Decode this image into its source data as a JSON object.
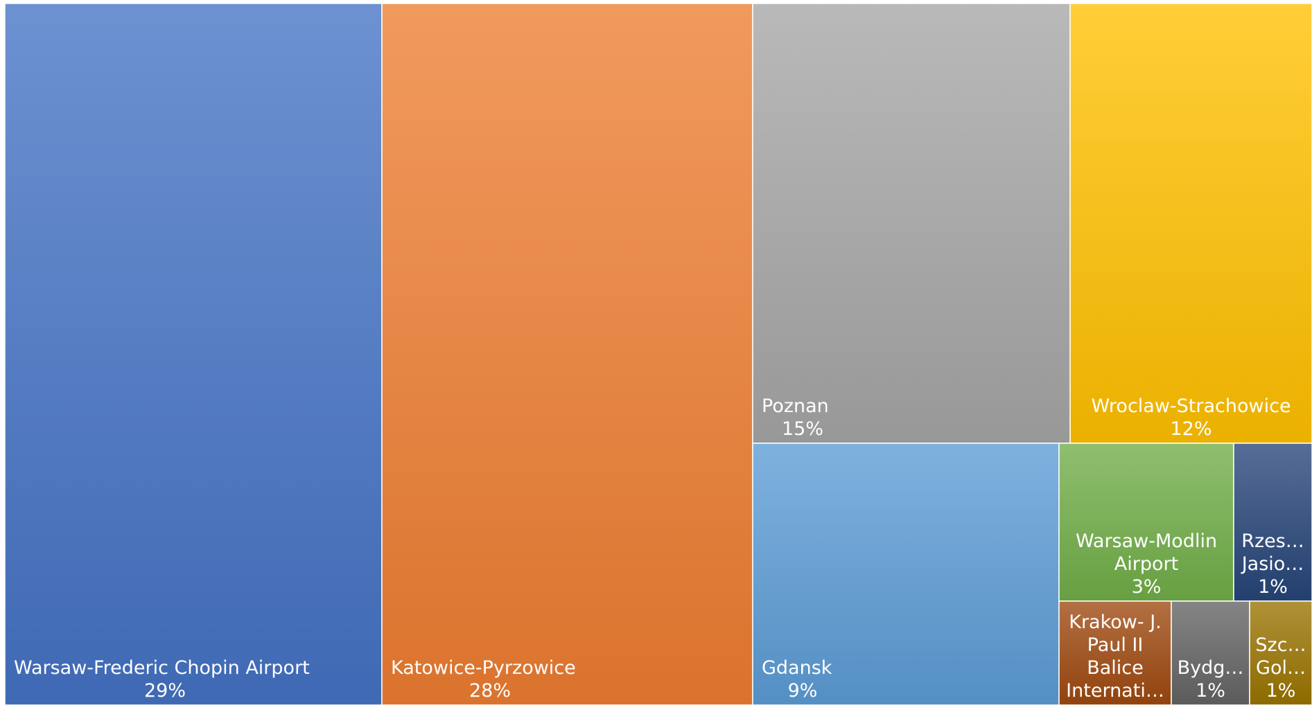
{
  "chart_data": {
    "type": "treemap",
    "nodes": [
      {
        "label_lines": [
          "Warsaw-Frederic Chopin Airport"
        ],
        "percent_label": "29%",
        "value": 29,
        "color": "#4472C4"
      },
      {
        "label_lines": [
          "Katowice-Pyrzowice"
        ],
        "percent_label": "28%",
        "value": 28,
        "color": "#ED7D31"
      },
      {
        "label_lines": [
          "Poznan"
        ],
        "percent_label": "15%",
        "value": 15,
        "color": "#A5A5A5"
      },
      {
        "label_lines": [
          "Wroclaw-Strachowice"
        ],
        "percent_label": "12%",
        "value": 12,
        "color": "#FFC000"
      },
      {
        "label_lines": [
          "Gdansk"
        ],
        "percent_label": "9%",
        "value": 9,
        "color": "#5B9BD5"
      },
      {
        "label_lines": [
          "Warsaw-Modlin",
          "Airport"
        ],
        "percent_label": "3%",
        "value": 3,
        "color": "#70AD47"
      },
      {
        "label_lines": [
          "Rzes…",
          "Jasio…"
        ],
        "percent_label": "1%",
        "value": 1,
        "color": "#264478"
      },
      {
        "label_lines": [
          "Krakow- J.",
          "Paul II",
          "Balice",
          "Internati…"
        ],
        "percent_label": "",
        "value": 1,
        "color": "#9E480E"
      },
      {
        "label_lines": [
          "Bydg…"
        ],
        "percent_label": "1%",
        "value": 1,
        "color": "#636363"
      },
      {
        "label_lines": [
          "Szc…",
          "Gol…"
        ],
        "percent_label": "1%",
        "value": 1,
        "color": "#997300"
      }
    ]
  }
}
